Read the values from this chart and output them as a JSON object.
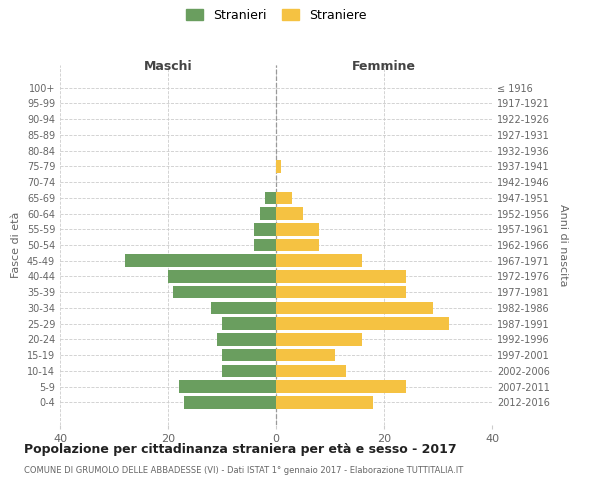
{
  "age_groups": [
    "100+",
    "95-99",
    "90-94",
    "85-89",
    "80-84",
    "75-79",
    "70-74",
    "65-69",
    "60-64",
    "55-59",
    "50-54",
    "45-49",
    "40-44",
    "35-39",
    "30-34",
    "25-29",
    "20-24",
    "15-19",
    "10-14",
    "5-9",
    "0-4"
  ],
  "birth_years": [
    "≤ 1916",
    "1917-1921",
    "1922-1926",
    "1927-1931",
    "1932-1936",
    "1937-1941",
    "1942-1946",
    "1947-1951",
    "1952-1956",
    "1957-1961",
    "1962-1966",
    "1967-1971",
    "1972-1976",
    "1977-1981",
    "1982-1986",
    "1987-1991",
    "1992-1996",
    "1997-2001",
    "2002-2006",
    "2007-2011",
    "2012-2016"
  ],
  "males": [
    0,
    0,
    0,
    0,
    0,
    0,
    0,
    2,
    3,
    4,
    4,
    28,
    20,
    19,
    12,
    10,
    11,
    10,
    10,
    18,
    17
  ],
  "females": [
    0,
    0,
    0,
    0,
    0,
    1,
    0,
    3,
    5,
    8,
    8,
    16,
    24,
    24,
    29,
    32,
    16,
    11,
    13,
    24,
    18
  ],
  "male_color": "#6a9e5f",
  "female_color": "#f5c242",
  "background_color": "#ffffff",
  "grid_color": "#cccccc",
  "title": "Popolazione per cittadinanza straniera per età e sesso - 2017",
  "subtitle": "COMUNE DI GRUMOLO DELLE ABBADESSE (VI) - Dati ISTAT 1° gennaio 2017 - Elaborazione TUTTITALIA.IT",
  "xlabel_left": "Maschi",
  "xlabel_right": "Femmine",
  "ylabel_left": "Fasce di età",
  "ylabel_right": "Anni di nascita",
  "legend_male": "Stranieri",
  "legend_female": "Straniere",
  "xlim": 40,
  "bar_height": 0.8
}
